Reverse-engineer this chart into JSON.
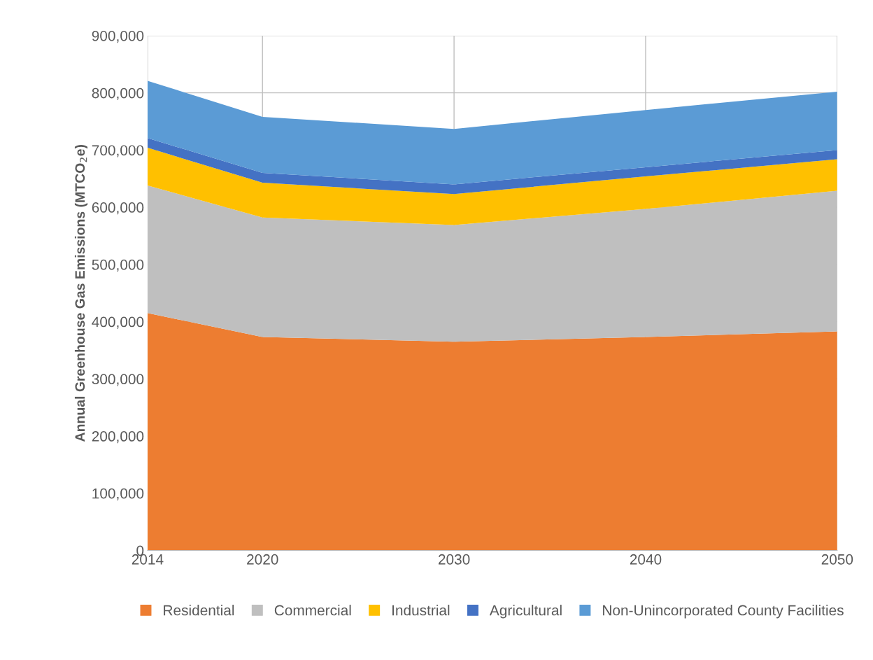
{
  "chart_data": {
    "type": "area",
    "stacked": true,
    "ylabel": "Annual Greenhouse Gas Emissions (MTCO$_{2}$e)",
    "x": [
      2014,
      2020,
      2030,
      2040,
      2050
    ],
    "series": [
      {
        "name": "Residential",
        "color": "#ed7d31",
        "values": [
          415000,
          373000,
          365000,
          373000,
          383000
        ]
      },
      {
        "name": "Commercial",
        "color": "#bfbfbf",
        "values": [
          223000,
          209000,
          204000,
          224000,
          246000
        ]
      },
      {
        "name": "Industrial",
        "color": "#ffc000",
        "values": [
          66000,
          61000,
          54000,
          57000,
          55000
        ]
      },
      {
        "name": "Agricultural",
        "color": "#4472c4",
        "values": [
          17000,
          17000,
          17000,
          16000,
          16000
        ]
      },
      {
        "name": "Non-Unincorporated County Facilities",
        "color": "#5b9bd5",
        "values": [
          100000,
          98000,
          97000,
          100000,
          102000
        ]
      }
    ],
    "xlim": [
      2014,
      2050
    ],
    "xticks": [
      2014,
      2020,
      2030,
      2040,
      2050
    ],
    "ylim": [
      0,
      900000
    ],
    "yticks": [
      {
        "value": 0,
        "label": "0"
      },
      {
        "value": 100000,
        "label": "100,000"
      },
      {
        "value": 200000,
        "label": "200,000"
      },
      {
        "value": 300000,
        "label": "300,000"
      },
      {
        "value": 400000,
        "label": "400,000"
      },
      {
        "value": 500000,
        "label": "500,000"
      },
      {
        "value": 600000,
        "label": "600,000"
      },
      {
        "value": 700000,
        "label": "700,000"
      },
      {
        "value": 800000,
        "label": "800,000"
      },
      {
        "value": 900000,
        "label": "900,000"
      }
    ],
    "grid": true,
    "legend": "bottom"
  }
}
